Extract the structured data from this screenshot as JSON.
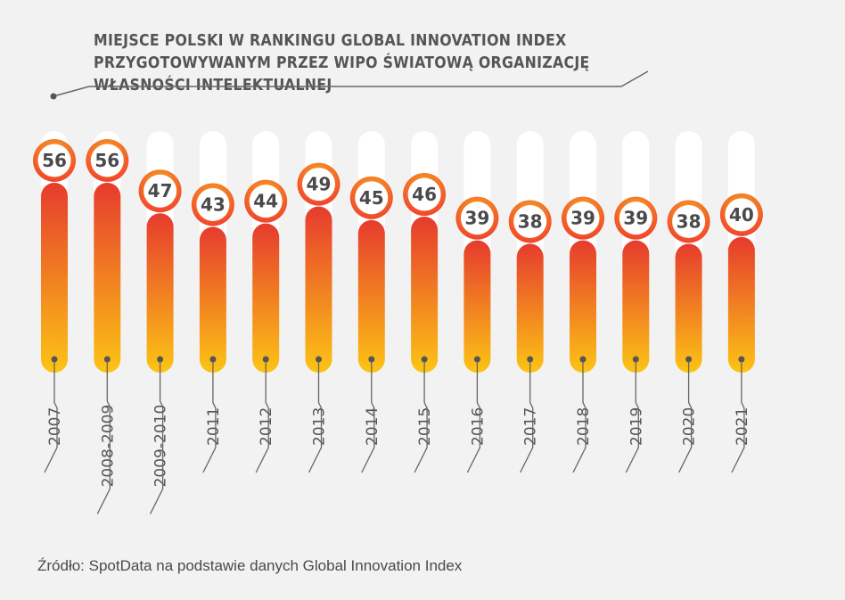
{
  "chart_data": {
    "type": "bar",
    "title": "MIEJSCE POLSKI W RANKINGU GLOBAL INNOVATION INDEX PRZYGOTOWYWANYM PRZEZ WIPO ŚWIATOWĄ ORGANIZACJĘ WŁASNOŚCI INTELEKTUALNEJ",
    "categories": [
      "2007",
      "2008-2009",
      "2009-2010",
      "2011",
      "2012",
      "2013",
      "2014",
      "2015",
      "2016",
      "2017",
      "2018",
      "2019",
      "2020",
      "2021"
    ],
    "values": [
      56,
      56,
      47,
      43,
      44,
      49,
      45,
      46,
      39,
      38,
      39,
      39,
      38,
      40
    ],
    "ylim": [
      0,
      70
    ],
    "source": "Źródło: SpotData na podstawie danych Global Innovation Index"
  },
  "colors": {
    "background": "#f2f2f2",
    "track": "#ffffff",
    "gradient_top": "#e63b2e",
    "gradient_bottom": "#fcc415",
    "badge_ring": "#f05a28",
    "text": "#4a4a4a",
    "line": "#666666"
  }
}
